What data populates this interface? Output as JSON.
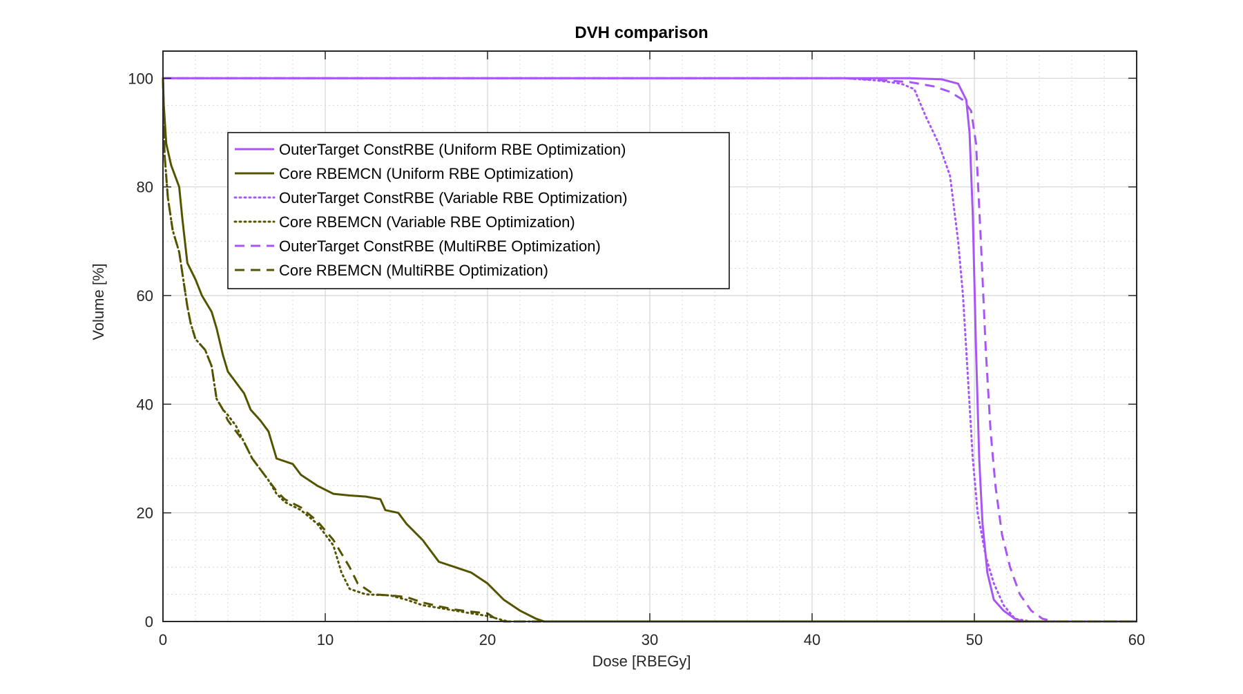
{
  "colors": {
    "outer_target": "#a855f7",
    "core": "#545400",
    "grid": "#d4d4d4",
    "axis": "#262626"
  },
  "chart_data": {
    "type": "line",
    "title": "DVH comparison",
    "xlabel": "Dose [RBEGy]",
    "ylabel": "Volume [%]",
    "xlim": [
      0,
      60
    ],
    "ylim": [
      0,
      105
    ],
    "xticks": [
      0,
      10,
      20,
      30,
      40,
      50,
      60
    ],
    "yticks": [
      0,
      20,
      40,
      60,
      80,
      100
    ],
    "xtick_labels": [
      "0",
      "10",
      "20",
      "30",
      "40",
      "50",
      "60"
    ],
    "ytick_labels": [
      "0",
      "20",
      "40",
      "60",
      "80",
      "100"
    ],
    "grid": true,
    "minor_grid": true,
    "legend_position": "top-left",
    "series": [
      {
        "name": "OuterTarget ConstRBE (Uniform RBE Optimization)",
        "color": "#a855f7",
        "style": "solid",
        "points": [
          [
            0,
            100
          ],
          [
            42,
            100
          ],
          [
            46,
            100
          ],
          [
            48,
            99.8
          ],
          [
            49,
            99
          ],
          [
            49.5,
            96
          ],
          [
            49.7,
            90
          ],
          [
            49.9,
            75
          ],
          [
            50.1,
            50
          ],
          [
            50.3,
            30
          ],
          [
            50.5,
            18
          ],
          [
            50.8,
            9
          ],
          [
            51.2,
            4
          ],
          [
            51.8,
            2
          ],
          [
            52.5,
            0.5
          ],
          [
            53,
            0
          ],
          [
            60,
            0
          ]
        ]
      },
      {
        "name": "Core RBEMCN (Uniform RBE Optimization)",
        "color": "#545400",
        "style": "solid",
        "points": [
          [
            0,
            100
          ],
          [
            0.05,
            95
          ],
          [
            0.2,
            88
          ],
          [
            0.5,
            84
          ],
          [
            1,
            80
          ],
          [
            1.2,
            74
          ],
          [
            1.5,
            66
          ],
          [
            2,
            63
          ],
          [
            2.4,
            60
          ],
          [
            3,
            57
          ],
          [
            3.3,
            54
          ],
          [
            3.7,
            49
          ],
          [
            4,
            46
          ],
          [
            4.5,
            44
          ],
          [
            5,
            42
          ],
          [
            5.4,
            39
          ],
          [
            6,
            37
          ],
          [
            6.5,
            35
          ],
          [
            7,
            30
          ],
          [
            8,
            29
          ],
          [
            8.5,
            27
          ],
          [
            9.5,
            25
          ],
          [
            10.5,
            23.5
          ],
          [
            11.5,
            23.2
          ],
          [
            12.5,
            23
          ],
          [
            13.4,
            22.5
          ],
          [
            13.7,
            20.5
          ],
          [
            14.5,
            20
          ],
          [
            15,
            18
          ],
          [
            16,
            15
          ],
          [
            17,
            11
          ],
          [
            18,
            10
          ],
          [
            19,
            9
          ],
          [
            20,
            7
          ],
          [
            21,
            4
          ],
          [
            22,
            2
          ],
          [
            23,
            0.5
          ],
          [
            23.5,
            0
          ],
          [
            60,
            0
          ]
        ]
      },
      {
        "name": "OuterTarget ConstRBE (Variable RBE Optimization)",
        "color": "#a855f7",
        "style": "dotted",
        "points": [
          [
            0,
            100
          ],
          [
            42,
            100
          ],
          [
            44,
            99.6
          ],
          [
            45.5,
            99
          ],
          [
            46.3,
            98
          ],
          [
            47,
            93
          ],
          [
            47.8,
            88
          ],
          [
            48.5,
            82
          ],
          [
            49,
            70
          ],
          [
            49.3,
            60
          ],
          [
            49.6,
            45
          ],
          [
            49.9,
            30
          ],
          [
            50.2,
            20
          ],
          [
            50.7,
            12
          ],
          [
            51.2,
            7
          ],
          [
            51.8,
            3
          ],
          [
            52.5,
            0.5
          ],
          [
            53.5,
            0
          ],
          [
            60,
            0
          ]
        ]
      },
      {
        "name": "Core RBEMCN (Variable RBE Optimization)",
        "color": "#545400",
        "style": "dotted",
        "points": [
          [
            0,
            100
          ],
          [
            0.1,
            86
          ],
          [
            0.3,
            78
          ],
          [
            0.6,
            72
          ],
          [
            1,
            68
          ],
          [
            1.5,
            58
          ],
          [
            1.7,
            55
          ],
          [
            2,
            52
          ],
          [
            2.6,
            50
          ],
          [
            3,
            47
          ],
          [
            3.3,
            41
          ],
          [
            3.7,
            39
          ],
          [
            4,
            38
          ],
          [
            4.5,
            36
          ],
          [
            5,
            33
          ],
          [
            5.5,
            30
          ],
          [
            6,
            28
          ],
          [
            6.5,
            26
          ],
          [
            7,
            23.5
          ],
          [
            7.5,
            22
          ],
          [
            8.5,
            20.5
          ],
          [
            9.5,
            18
          ],
          [
            10.5,
            14
          ],
          [
            11,
            9
          ],
          [
            11.5,
            6
          ],
          [
            12.5,
            5
          ],
          [
            14,
            4.8
          ],
          [
            15,
            4
          ],
          [
            16,
            3
          ],
          [
            17,
            2.5
          ],
          [
            18,
            2
          ],
          [
            19,
            1.5
          ],
          [
            20,
            1
          ],
          [
            21,
            0.2
          ],
          [
            21.3,
            0
          ],
          [
            60,
            0
          ]
        ]
      },
      {
        "name": "OuterTarget ConstRBE (MultiRBE Optimization)",
        "color": "#a855f7",
        "style": "dashed",
        "points": [
          [
            0,
            100
          ],
          [
            42,
            100
          ],
          [
            44,
            99.7
          ],
          [
            46,
            99.3
          ],
          [
            47.5,
            98.5
          ],
          [
            48.5,
            97.5
          ],
          [
            49.3,
            96
          ],
          [
            49.8,
            94
          ],
          [
            50.1,
            88
          ],
          [
            50.4,
            70
          ],
          [
            50.7,
            50
          ],
          [
            51,
            35
          ],
          [
            51.3,
            25
          ],
          [
            51.7,
            16
          ],
          [
            52.2,
            10
          ],
          [
            52.8,
            5
          ],
          [
            53.5,
            2
          ],
          [
            54.2,
            0.5
          ],
          [
            55,
            0
          ],
          [
            60,
            0
          ]
        ]
      },
      {
        "name": "Core RBEMCN (MultiRBE Optimization)",
        "color": "#545400",
        "style": "dashed",
        "points": [
          [
            0,
            100
          ],
          [
            0.1,
            86
          ],
          [
            0.3,
            78
          ],
          [
            0.6,
            72
          ],
          [
            1,
            68
          ],
          [
            1.5,
            58
          ],
          [
            1.7,
            55
          ],
          [
            2,
            52
          ],
          [
            2.6,
            50
          ],
          [
            3,
            47
          ],
          [
            3.3,
            41
          ],
          [
            3.7,
            39
          ],
          [
            4,
            37
          ],
          [
            4.5,
            35
          ],
          [
            5,
            33
          ],
          [
            5.5,
            30
          ],
          [
            6,
            28
          ],
          [
            6.5,
            26
          ],
          [
            7,
            24
          ],
          [
            7.5,
            22.5
          ],
          [
            8.5,
            21
          ],
          [
            9.5,
            18.5
          ],
          [
            10.5,
            15
          ],
          [
            11.5,
            10
          ],
          [
            12,
            7
          ],
          [
            13,
            5
          ],
          [
            14,
            4.8
          ],
          [
            15,
            4.5
          ],
          [
            16,
            3.5
          ],
          [
            17,
            2.8
          ],
          [
            18,
            2.2
          ],
          [
            19,
            1.8
          ],
          [
            20,
            1.5
          ],
          [
            20.5,
            0.5
          ],
          [
            21,
            0
          ],
          [
            60,
            0
          ]
        ]
      }
    ]
  }
}
